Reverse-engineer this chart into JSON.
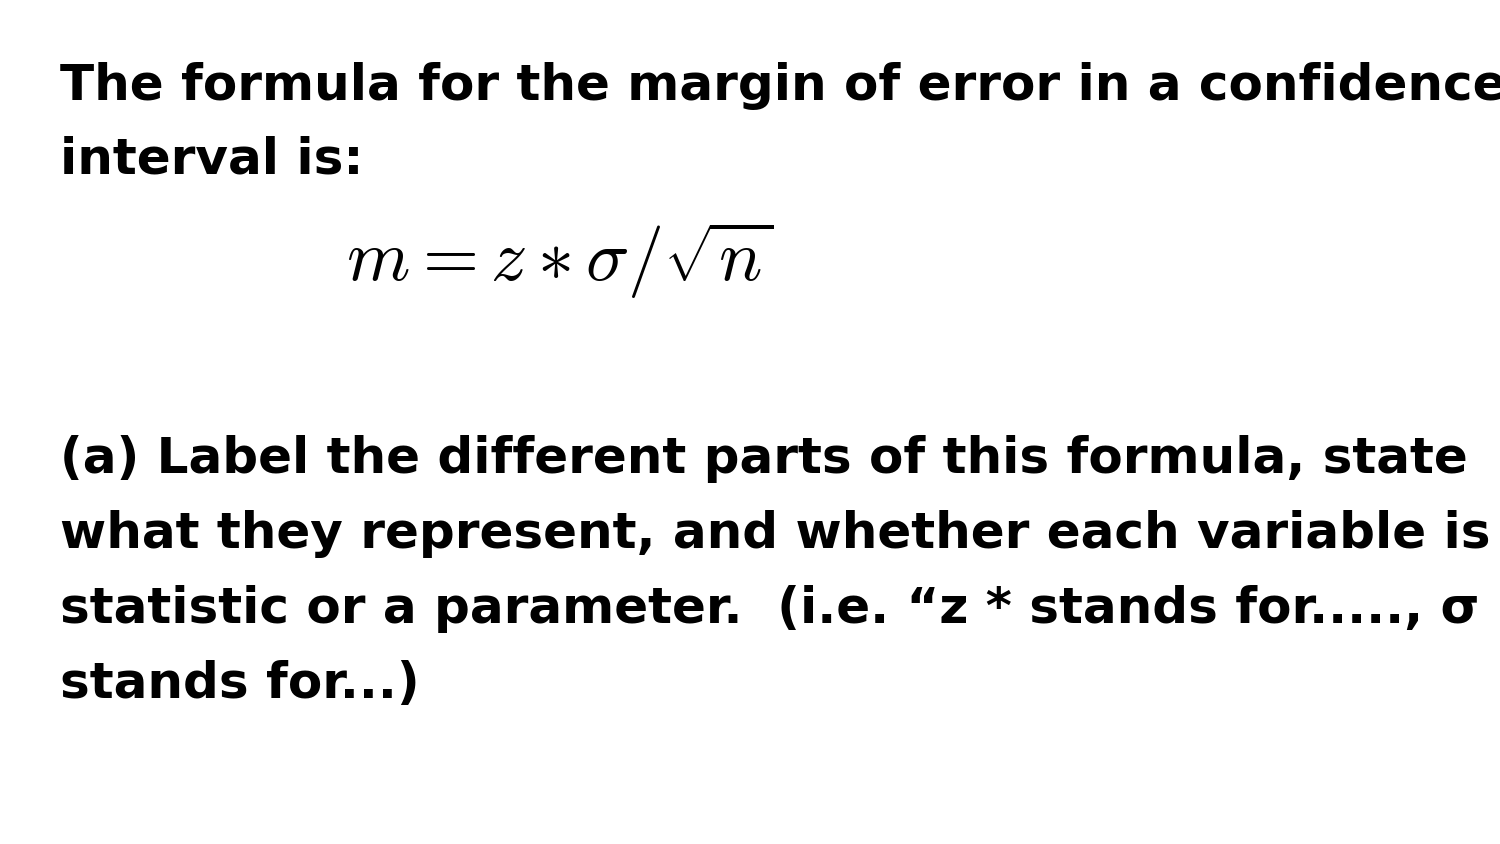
{
  "background_color": "#ffffff",
  "text_color": "#000000",
  "figsize": [
    15.0,
    8.44
  ],
  "dpi": 100,
  "line1": "The formula for the margin of error in a confidence",
  "line2": "interval is:",
  "formula": "$m = z * \\sigma/\\sqrt{n}$",
  "line3": "(a) Label the different parts of this formula, state",
  "line4": "what they represent, and whether each variable is a",
  "line5": "statistic or a parameter.  (i.e. “z * stands for....., σ",
  "line6": "stands for...)",
  "font_size_text": 36,
  "font_size_formula": 52,
  "font_weight": "bold",
  "font_family": "DejaVu Sans"
}
